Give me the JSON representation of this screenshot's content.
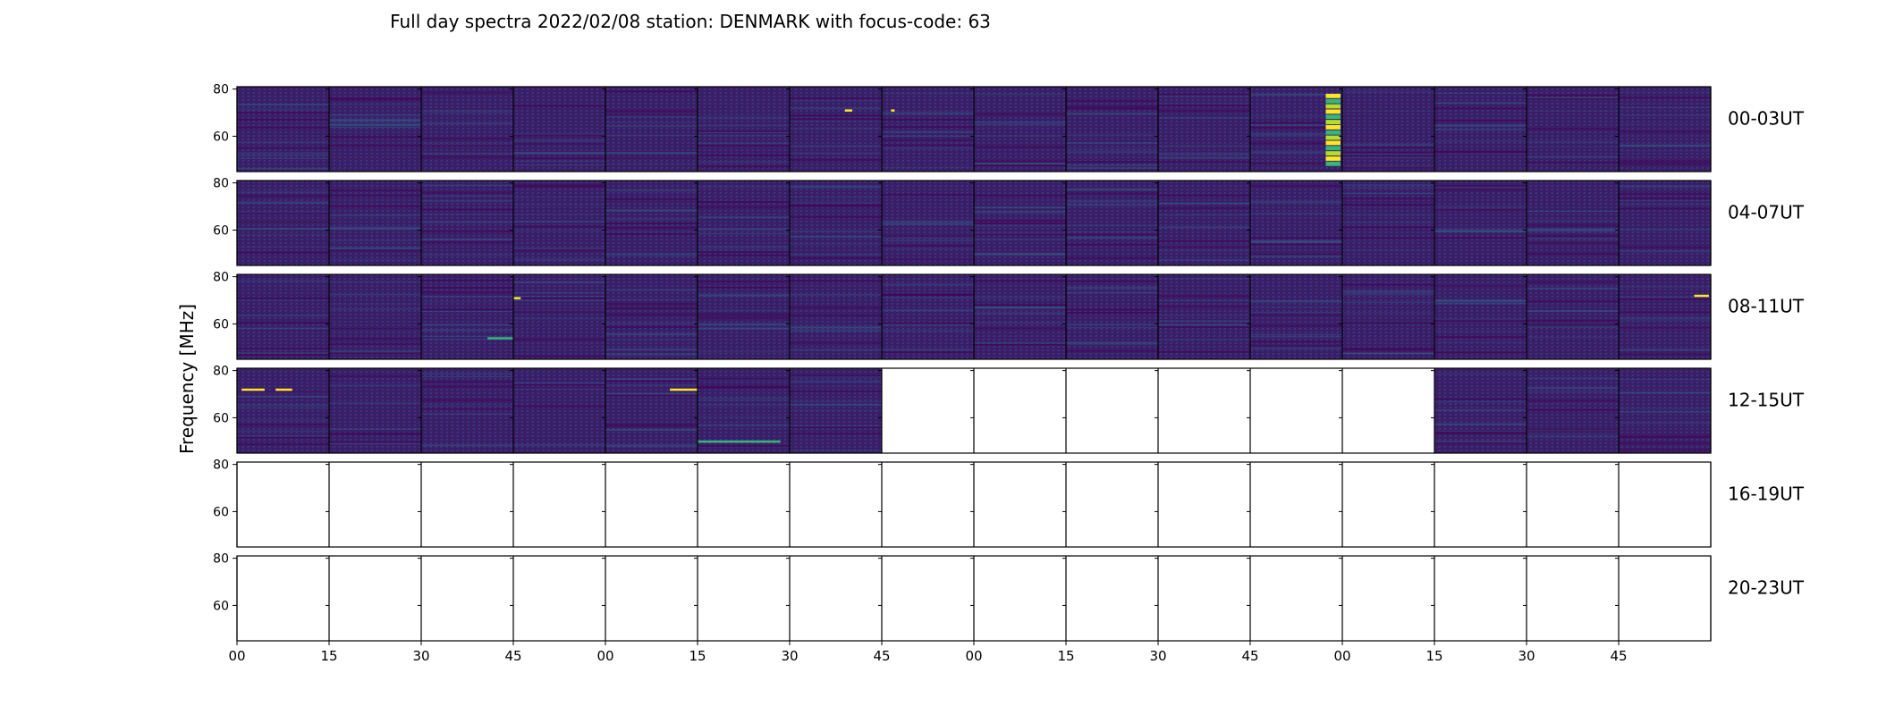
{
  "chart_data": {
    "type": "heatmap",
    "title": "Full day spectra 2022/02/08 station: DENMARK with focus-code: 63",
    "ylabel": "Frequency [MHz]",
    "xlabel": "",
    "ylim": [
      45,
      81
    ],
    "yticks": [
      60,
      80
    ],
    "xticks": [
      "00",
      "15",
      "30",
      "45",
      "00",
      "15",
      "30",
      "45",
      "00",
      "15",
      "30",
      "45",
      "00",
      "15",
      "30",
      "45"
    ],
    "colormap": "viridis",
    "colors": {
      "background": "#3b1f67",
      "low": "#440154",
      "mid": "#31688e",
      "high": "#35b779",
      "peak": "#fde725",
      "missing": "#ffffff"
    },
    "rows": [
      {
        "label": "00-03UT",
        "panels_with_data": [
          1,
          1,
          1,
          1,
          1,
          1,
          1,
          1,
          1,
          1,
          1,
          1,
          1,
          1,
          1,
          1
        ],
        "events": [
          {
            "panel": 6,
            "t": [
              0.6,
              0.68
            ],
            "freq": [
              71,
              71
            ],
            "level": "peak"
          },
          {
            "panel": 7,
            "t": [
              0.1,
              0.14
            ],
            "freq": [
              71,
              71
            ],
            "level": "peak"
          },
          {
            "panel": 11,
            "t": [
              0.82,
              0.98
            ],
            "freq": [
              47,
              78
            ],
            "level": "burst"
          }
        ]
      },
      {
        "label": "04-07UT",
        "panels_with_data": [
          1,
          1,
          1,
          1,
          1,
          1,
          1,
          1,
          1,
          1,
          1,
          1,
          1,
          1,
          1,
          1
        ],
        "events": []
      },
      {
        "label": "08-11UT",
        "panels_with_data": [
          1,
          1,
          1,
          1,
          1,
          1,
          1,
          1,
          1,
          1,
          1,
          1,
          1,
          1,
          1,
          1
        ],
        "events": [
          {
            "panel": 3,
            "t": [
              0.0,
              0.08
            ],
            "freq": [
              71,
              71
            ],
            "level": "peak"
          },
          {
            "panel": 2,
            "t": [
              0.72,
              1.0
            ],
            "freq": [
              54,
              54
            ],
            "level": "high"
          },
          {
            "panel": 15,
            "t": [
              0.82,
              0.98
            ],
            "freq": [
              72,
              72
            ],
            "level": "peak"
          }
        ]
      },
      {
        "label": "12-15UT",
        "panels_with_data": [
          1,
          1,
          1,
          1,
          1,
          1,
          1,
          0,
          0,
          0,
          0,
          0,
          0,
          1,
          1,
          1
        ],
        "events": [
          {
            "panel": 0,
            "t": [
              0.05,
              0.3
            ],
            "freq": [
              72,
              72
            ],
            "level": "peak"
          },
          {
            "panel": 0,
            "t": [
              0.42,
              0.6
            ],
            "freq": [
              72,
              72
            ],
            "level": "peak"
          },
          {
            "panel": 4,
            "t": [
              0.7,
              1.0
            ],
            "freq": [
              72,
              72
            ],
            "level": "peak"
          },
          {
            "panel": 5,
            "t": [
              0.0,
              0.9
            ],
            "freq": [
              50,
              50
            ],
            "level": "high"
          }
        ]
      },
      {
        "label": "16-19UT",
        "panels_with_data": [
          0,
          0,
          0,
          0,
          0,
          0,
          0,
          0,
          0,
          0,
          0,
          0,
          0,
          0,
          0,
          0
        ],
        "events": []
      },
      {
        "label": "20-23UT",
        "panels_with_data": [
          0,
          0,
          0,
          0,
          0,
          0,
          0,
          0,
          0,
          0,
          0,
          0,
          0,
          0,
          0,
          0
        ],
        "events": []
      }
    ]
  }
}
